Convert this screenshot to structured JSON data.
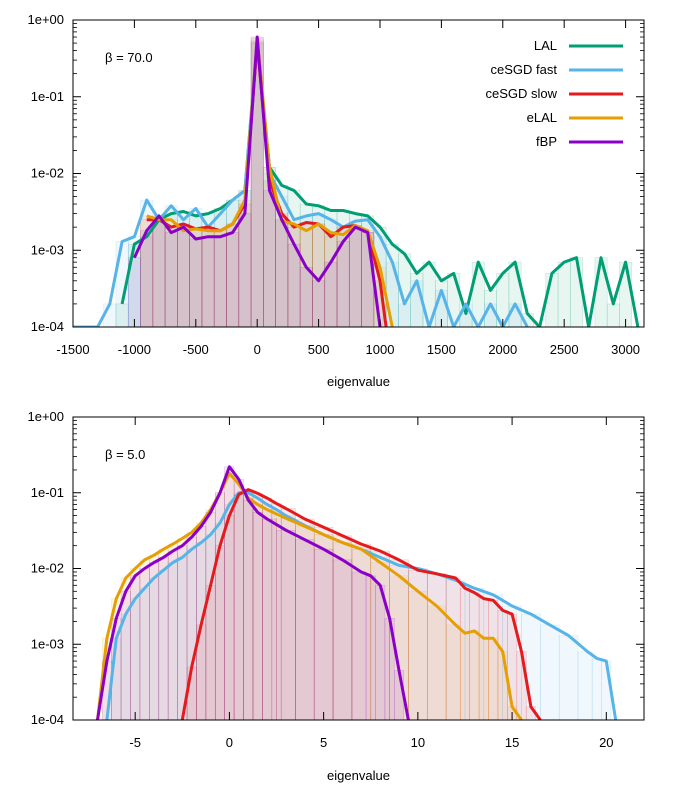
{
  "chart_data": [
    {
      "type": "line",
      "annotation": "β = 70.0",
      "xlabel": "eigenvalue",
      "ylabel": "",
      "ylog": true,
      "xlim": [
        -1500,
        3150
      ],
      "ylim": [
        0.0001,
        1
      ],
      "xticks": [
        "-1500",
        "-1000",
        "-500",
        "0",
        "500",
        "1000",
        "1500",
        "2000",
        "2500",
        "3000"
      ],
      "yticks": [
        "1e-04",
        "1e-03",
        "1e-02",
        "1e-01",
        "1e+00"
      ],
      "legend_position": "top-right",
      "series": [
        {
          "name": "LAL",
          "color": "#009e73",
          "x": [
            -1100,
            -1000,
            -900,
            -800,
            -700,
            -600,
            -500,
            -400,
            -300,
            -200,
            -100,
            0,
            100,
            200,
            300,
            400,
            500,
            600,
            700,
            800,
            900,
            1000,
            1100,
            1200,
            1300,
            1400,
            1500,
            1600,
            1700,
            1800,
            1900,
            2000,
            2100,
            2200,
            2300,
            2400,
            2500,
            2600,
            2700,
            2800,
            2900,
            3000,
            3100
          ],
          "y": [
            0.0002,
            0.0012,
            0.0015,
            0.0025,
            0.003,
            0.0032,
            0.0028,
            0.003,
            0.0035,
            0.0045,
            0.006,
            0.5,
            0.012,
            0.007,
            0.006,
            0.004,
            0.0038,
            0.0033,
            0.0033,
            0.003,
            0.0028,
            0.002,
            0.0012,
            0.0009,
            0.0005,
            0.0007,
            0.0004,
            0.0005,
            0.00015,
            0.0007,
            0.0003,
            0.0005,
            0.0007,
            0.00015,
            0.0001,
            0.0005,
            0.0007,
            0.0008,
            0.0001,
            0.0008,
            0.0002,
            0.0007,
            0.0001
          ]
        },
        {
          "name": "ceSGD fast",
          "color": "#56b4e9",
          "x": [
            -1500,
            -1400,
            -1300,
            -1200,
            -1100,
            -1000,
            -900,
            -800,
            -700,
            -600,
            -500,
            -400,
            -300,
            -200,
            -100,
            0,
            100,
            200,
            300,
            400,
            500,
            600,
            700,
            800,
            900,
            1000,
            1100,
            1200,
            1300,
            1400,
            1500,
            1600,
            1700,
            1800,
            1900,
            2000,
            2100,
            2200
          ],
          "y": [
            0.0001,
            0.0001,
            0.0001,
            0.0002,
            0.0013,
            0.0015,
            0.0045,
            0.0025,
            0.0038,
            0.0025,
            0.0035,
            0.002,
            0.003,
            0.0045,
            0.006,
            0.55,
            0.01,
            0.005,
            0.0025,
            0.0028,
            0.003,
            0.0025,
            0.002,
            0.0024,
            0.0025,
            0.0015,
            0.0007,
            0.0002,
            0.0004,
            0.0001,
            0.0003,
            0.0001,
            0.0002,
            0.0001,
            0.0002,
            0.0001,
            0.0002,
            0.0001
          ]
        },
        {
          "name": "ceSGD slow",
          "color": "#e41a1c",
          "x": [
            -900,
            -800,
            -700,
            -600,
            -500,
            -400,
            -300,
            -200,
            -100,
            0,
            100,
            200,
            300,
            400,
            500,
            600,
            700,
            800,
            900,
            1000,
            1050
          ],
          "y": [
            0.0025,
            0.0025,
            0.002,
            0.0022,
            0.0019,
            0.002,
            0.0018,
            0.0022,
            0.004,
            0.52,
            0.008,
            0.003,
            0.002,
            0.0023,
            0.0022,
            0.0015,
            0.002,
            0.0021,
            0.0017,
            0.0004,
            0.0001
          ]
        },
        {
          "name": "eLAL",
          "color": "#e69f00",
          "x": [
            -900,
            -800,
            -700,
            -600,
            -500,
            -400,
            -300,
            -200,
            -100,
            0,
            100,
            200,
            300,
            400,
            500,
            600,
            700,
            800,
            900,
            1000,
            1100
          ],
          "y": [
            0.0028,
            0.0025,
            0.0025,
            0.0018,
            0.0019,
            0.0018,
            0.0018,
            0.0022,
            0.0045,
            0.58,
            0.012,
            0.0024,
            0.0022,
            0.0018,
            0.0022,
            0.0017,
            0.0016,
            0.0021,
            0.0018,
            0.0006,
            0.0001
          ]
        },
        {
          "name": "fBP",
          "color": "#8a00c8",
          "x": [
            -1000,
            -900,
            -800,
            -700,
            -600,
            -500,
            -400,
            -300,
            -200,
            -100,
            0,
            100,
            200,
            300,
            400,
            500,
            600,
            700,
            800,
            900,
            1000
          ],
          "y": [
            0.0008,
            0.0018,
            0.0028,
            0.0017,
            0.002,
            0.0014,
            0.0015,
            0.0015,
            0.0017,
            0.003,
            0.6,
            0.006,
            0.0025,
            0.0012,
            0.0006,
            0.0004,
            0.0007,
            0.0013,
            0.002,
            0.0017,
            0.0001
          ]
        }
      ]
    },
    {
      "type": "line",
      "annotation": "β = 5.0",
      "xlabel": "eigenvalue",
      "ylabel": "",
      "ylog": true,
      "xlim": [
        -8.3,
        22
      ],
      "ylim": [
        0.0001,
        1
      ],
      "xticks": [
        "-5",
        "0",
        "5",
        "10",
        "15",
        "20"
      ],
      "yticks": [
        "1e-04",
        "1e-03",
        "1e-02",
        "1e-01",
        "1e+00"
      ],
      "series": [
        {
          "name": "ceSGD fast",
          "color": "#56b4e9",
          "x": [
            -6.5,
            -6,
            -5.5,
            -5,
            -4.5,
            -4,
            -3.5,
            -3,
            -2.5,
            -2,
            -1.5,
            -1,
            -0.5,
            0,
            0.5,
            1,
            1.5,
            2,
            2.5,
            3,
            4,
            5,
            6,
            7,
            8,
            9,
            10,
            11,
            12,
            13,
            14,
            15,
            16,
            17,
            18,
            19,
            19.5,
            20,
            20.5
          ],
          "y": [
            0.0001,
            0.0012,
            0.0025,
            0.004,
            0.0055,
            0.0075,
            0.0095,
            0.012,
            0.014,
            0.018,
            0.022,
            0.028,
            0.04,
            0.07,
            0.1,
            0.1,
            0.085,
            0.07,
            0.06,
            0.05,
            0.037,
            0.028,
            0.022,
            0.018,
            0.014,
            0.011,
            0.01,
            0.0085,
            0.007,
            0.0055,
            0.0045,
            0.0032,
            0.0025,
            0.0018,
            0.0013,
            0.0008,
            0.00065,
            0.0006,
            0.0001
          ]
        },
        {
          "name": "ceSGD slow",
          "color": "#e41a1c",
          "x": [
            -2.5,
            -2,
            -1.5,
            -1,
            -0.5,
            0,
            0.5,
            1,
            1.5,
            2,
            2.5,
            3,
            4,
            5,
            6,
            7,
            8,
            9,
            10,
            11,
            12,
            12.5,
            13,
            13.5,
            14,
            14.5,
            15,
            15.5,
            16,
            16.5
          ],
          "y": [
            0.0001,
            0.0005,
            0.0018,
            0.006,
            0.02,
            0.05,
            0.095,
            0.11,
            0.098,
            0.085,
            0.072,
            0.062,
            0.045,
            0.035,
            0.027,
            0.021,
            0.017,
            0.013,
            0.0095,
            0.0085,
            0.0075,
            0.0055,
            0.0048,
            0.004,
            0.0038,
            0.0028,
            0.0025,
            0.0008,
            0.00015,
            0.0001
          ]
        },
        {
          "name": "eLAL",
          "color": "#e69f00",
          "x": [
            -7,
            -6.5,
            -6,
            -5.5,
            -5,
            -4.5,
            -4,
            -3.5,
            -3,
            -2.5,
            -2,
            -1.5,
            -1,
            -0.5,
            0,
            0.5,
            1,
            1.5,
            2,
            3,
            4,
            5,
            6,
            7,
            8,
            9,
            10,
            11,
            12,
            12.5,
            13,
            13.5,
            14,
            14.5,
            15,
            15.5
          ],
          "y": [
            0.0001,
            0.0012,
            0.004,
            0.0075,
            0.01,
            0.013,
            0.015,
            0.018,
            0.021,
            0.025,
            0.03,
            0.04,
            0.06,
            0.1,
            0.18,
            0.13,
            0.085,
            0.07,
            0.06,
            0.046,
            0.036,
            0.028,
            0.022,
            0.018,
            0.012,
            0.008,
            0.005,
            0.0032,
            0.0018,
            0.0014,
            0.0015,
            0.0012,
            0.0012,
            0.0008,
            0.00015,
            0.0001
          ]
        },
        {
          "name": "fBP",
          "color": "#8a00c8",
          "x": [
            -7,
            -6.5,
            -6,
            -5.5,
            -5,
            -4.5,
            -4,
            -3.5,
            -3,
            -2.5,
            -2,
            -1.5,
            -1,
            -0.5,
            0,
            0.5,
            1,
            1.5,
            2,
            3,
            4,
            5,
            6,
            7,
            7.5,
            8,
            8.5,
            9,
            9.5
          ],
          "y": [
            0.0001,
            0.0006,
            0.0022,
            0.005,
            0.008,
            0.01,
            0.012,
            0.014,
            0.017,
            0.02,
            0.026,
            0.036,
            0.055,
            0.1,
            0.22,
            0.15,
            0.08,
            0.055,
            0.045,
            0.032,
            0.024,
            0.018,
            0.013,
            0.009,
            0.008,
            0.006,
            0.0022,
            0.00045,
            0.0001
          ]
        }
      ]
    }
  ]
}
